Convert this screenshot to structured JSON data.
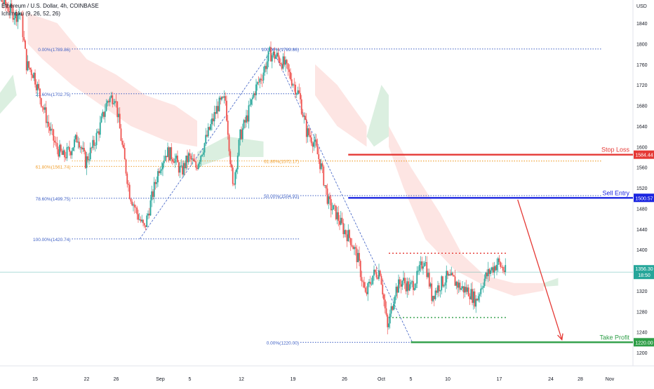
{
  "chart_data": {
    "type": "candlestick",
    "legend": {
      "symbol": "Ethereum / U.S. Dollar, 4h, COINBASE",
      "indicator": "Ichimoku (9, 26, 52, 26)"
    },
    "y_axis": {
      "unit_label": "USD",
      "ylim": [
        1190,
        1880
      ],
      "ticks": [
        1200,
        1240,
        1280,
        1320,
        1360,
        1400,
        1440,
        1480,
        1520,
        1560,
        1600,
        1640,
        1680,
        1720,
        1760,
        1800,
        1840
      ]
    },
    "x_axis": {
      "ticks": [
        {
          "label": "15",
          "day": 15
        },
        {
          "label": "22",
          "day": 22
        },
        {
          "label": "26",
          "day": 26
        },
        {
          "label": "Sep",
          "day": 32
        },
        {
          "label": "5",
          "day": 36
        },
        {
          "label": "12",
          "day": 43
        },
        {
          "label": "19",
          "day": 50
        },
        {
          "label": "26",
          "day": 57
        },
        {
          "label": "Oct",
          "day": 62
        },
        {
          "label": "5",
          "day": 66
        },
        {
          "label": "10",
          "day": 71
        },
        {
          "label": "17",
          "day": 78
        },
        {
          "label": "24",
          "day": 85
        },
        {
          "label": "28",
          "day": 89
        },
        {
          "label": "Nov",
          "day": 93
        }
      ]
    },
    "price_path": [
      [
        7.5,
        1770
      ],
      [
        8.5,
        1835
      ],
      [
        9.5,
        1870
      ],
      [
        10.5,
        1885
      ],
      [
        11.5,
        1870
      ],
      [
        12.5,
        1855
      ],
      [
        13.2,
        1860
      ],
      [
        14,
        1760
      ],
      [
        15,
        1740
      ],
      [
        16,
        1690
      ],
      [
        17,
        1640
      ],
      [
        18,
        1600
      ],
      [
        19,
        1580
      ],
      [
        20,
        1595
      ],
      [
        21,
        1620
      ],
      [
        22,
        1570
      ],
      [
        23,
        1600
      ],
      [
        24,
        1640
      ],
      [
        25,
        1690
      ],
      [
        26,
        1700
      ],
      [
        27,
        1600
      ],
      [
        28,
        1510
      ],
      [
        29,
        1470
      ],
      [
        30,
        1440
      ],
      [
        31,
        1500
      ],
      [
        32,
        1560
      ],
      [
        33,
        1590
      ],
      [
        34,
        1580
      ],
      [
        35,
        1550
      ],
      [
        36,
        1580
      ],
      [
        37,
        1560
      ],
      [
        38,
        1600
      ],
      [
        39,
        1640
      ],
      [
        40,
        1680
      ],
      [
        41,
        1690
      ],
      [
        42,
        1520
      ],
      [
        43,
        1620
      ],
      [
        44,
        1660
      ],
      [
        45,
        1710
      ],
      [
        46,
        1740
      ],
      [
        47,
        1780
      ],
      [
        48,
        1775
      ],
      [
        49,
        1760
      ],
      [
        50,
        1730
      ],
      [
        51,
        1700
      ],
      [
        52,
        1630
      ],
      [
        53,
        1610
      ],
      [
        54,
        1560
      ],
      [
        55,
        1490
      ],
      [
        56,
        1470
      ],
      [
        57,
        1440
      ],
      [
        58,
        1420
      ],
      [
        59,
        1380
      ],
      [
        60,
        1310
      ],
      [
        61,
        1350
      ],
      [
        62,
        1360
      ],
      [
        63,
        1245
      ],
      [
        64,
        1320
      ],
      [
        65,
        1340
      ],
      [
        66,
        1325
      ],
      [
        67,
        1345
      ],
      [
        68,
        1385
      ],
      [
        69,
        1310
      ],
      [
        70,
        1330
      ],
      [
        71,
        1345
      ],
      [
        72,
        1340
      ],
      [
        73,
        1325
      ],
      [
        74,
        1320
      ],
      [
        75,
        1300
      ],
      [
        76,
        1340
      ],
      [
        77,
        1360
      ],
      [
        78,
        1375
      ],
      [
        79,
        1356.3
      ]
    ],
    "candle_span": [
      7.5,
      79
    ],
    "cloud": {
      "green": [
        [
          [
            7.5,
            1670
          ],
          [
            10,
            1700
          ],
          [
            12,
            1740
          ],
          [
            12.5,
            1700
          ],
          [
            10,
            1660
          ],
          [
            7.5,
            1640
          ]
        ],
        [
          [
            37,
            1590
          ],
          [
            41,
            1620
          ],
          [
            46,
            1610
          ],
          [
            46,
            1580
          ],
          [
            41,
            1580
          ],
          [
            37,
            1560
          ]
        ],
        [
          [
            60,
            1620
          ],
          [
            62,
            1720
          ],
          [
            63,
            1700
          ],
          [
            63,
            1620
          ],
          [
            61,
            1600
          ]
        ],
        [
          [
            84,
            1335
          ],
          [
            86,
            1345
          ],
          [
            86,
            1330
          ],
          [
            84,
            1328
          ]
        ]
      ],
      "red": [
        [
          [
            14,
            1860
          ],
          [
            18,
            1840
          ],
          [
            22,
            1770
          ],
          [
            26,
            1740
          ],
          [
            30,
            1700
          ],
          [
            34,
            1680
          ],
          [
            37,
            1650
          ],
          [
            37,
            1600
          ],
          [
            33,
            1610
          ],
          [
            28,
            1640
          ],
          [
            24,
            1680
          ],
          [
            20,
            1720
          ],
          [
            16,
            1770
          ],
          [
            14,
            1800
          ]
        ],
        [
          [
            53,
            1760
          ],
          [
            56,
            1720
          ],
          [
            60,
            1640
          ],
          [
            60,
            1600
          ],
          [
            56,
            1640
          ],
          [
            53,
            1700
          ]
        ],
        [
          [
            63,
            1640
          ],
          [
            66,
            1560
          ],
          [
            70,
            1470
          ],
          [
            73,
            1390
          ],
          [
            76,
            1350
          ],
          [
            80,
            1335
          ],
          [
            84,
            1335
          ],
          [
            84,
            1320
          ],
          [
            80,
            1310
          ],
          [
            76,
            1330
          ],
          [
            72,
            1360
          ],
          [
            68,
            1420
          ],
          [
            65,
            1520
          ],
          [
            63,
            1600
          ]
        ]
      ]
    },
    "fib_left": {
      "x_start": 20,
      "x_end": 51,
      "levels": [
        {
          "label": "0.00%(1789.86)",
          "value": 1789.86
        },
        {
          "label": "23.60%(1702.75)",
          "value": 1702.75
        },
        {
          "label": "61.80%(1561.74)",
          "value": 1561.74
        },
        {
          "label": "78.60%(1499.75)",
          "value": 1499.75
        },
        {
          "label": "100.00%(1420.74)",
          "value": 1420.74
        }
      ]
    },
    "fib_right": {
      "x_start": 51,
      "x_end": 92,
      "levels": [
        {
          "label": "100.00%(1789.86)",
          "value": 1789.86
        },
        {
          "label": "61.80%(1572.17)",
          "value": 1572.17
        },
        {
          "label": "50.00%(1504.93)",
          "value": 1504.93
        },
        {
          "label": "0.00%(1220.00)",
          "value": 1220.0
        }
      ]
    },
    "zigzag": [
      [
        29.2,
        1420.74
      ],
      [
        47.2,
        1789.86
      ],
      [
        66.2,
        1220.0
      ]
    ],
    "trade_lines": [
      {
        "label": "Stop Loss",
        "value": 1584.44,
        "price_label": "1584.44",
        "x_start": 57.5,
        "color": "#e53935"
      },
      {
        "label": "Sell Entry",
        "value": 1500.57,
        "price_label": "1500.57",
        "x_start": 57.5,
        "color": "#1a25e0"
      },
      {
        "label": "Take Profit",
        "value": 1220.0,
        "price_label": "1220.00",
        "x_start": 66,
        "color": "#2e9e47"
      }
    ],
    "range_box": {
      "top": 1393,
      "bottom": 1268,
      "x_start": 63,
      "x_end": 79
    },
    "arrow": {
      "from": [
        80.5,
        1497
      ],
      "to": [
        86.5,
        1225
      ],
      "color": "#e53935"
    },
    "current_price": {
      "value": 1356.3,
      "label": "1356.30",
      "countdown": "18:50"
    },
    "colors": {
      "up": "#26a69a",
      "down": "#ef5350",
      "fib_blue": "#3d5fc4",
      "fib_orange": "#f0a030",
      "cloud_green": "#cfe9d6",
      "cloud_red": "#fbd3d1"
    }
  }
}
